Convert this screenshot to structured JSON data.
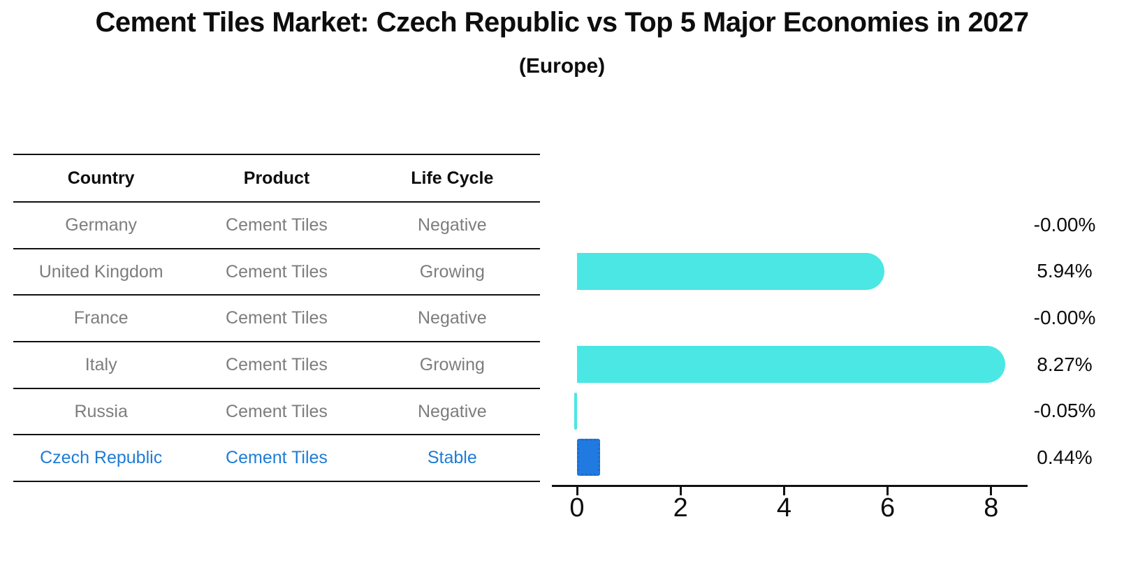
{
  "header": {
    "title": "Cement Tiles Market: Czech Republic vs Top 5 Major Economies in 2027",
    "subtitle": "(Europe)"
  },
  "table": {
    "headers": [
      "Country",
      "Product",
      "Life Cycle"
    ],
    "rows": [
      {
        "country": "Germany",
        "product": "Cement Tiles",
        "life_cycle": "Negative",
        "highlight": false
      },
      {
        "country": "United Kingdom",
        "product": "Cement Tiles",
        "life_cycle": "Growing",
        "highlight": false
      },
      {
        "country": "France",
        "product": "Cement Tiles",
        "life_cycle": "Negative",
        "highlight": false
      },
      {
        "country": "Italy",
        "product": "Cement Tiles",
        "life_cycle": "Growing",
        "highlight": false
      },
      {
        "country": "Russia",
        "product": "Cement Tiles",
        "life_cycle": "Negative",
        "highlight": false
      },
      {
        "country": "Czech Republic",
        "product": "Cement Tiles",
        "life_cycle": "Stable",
        "highlight": true
      }
    ]
  },
  "colors": {
    "bar_default": "#4AE7E4",
    "bar_highlight": "#217ADF",
    "bar_highlight_border": "#1C6BD0",
    "text_highlight": "#1E7CD6",
    "text_muted": "#7D7D7D",
    "axis": "#111111"
  },
  "chart_data": {
    "type": "bar",
    "orientation": "horizontal",
    "title": "Cement Tiles Market: Czech Republic vs Top 5 Major Economies in 2027 (Europe)",
    "categories": [
      "Germany",
      "United Kingdom",
      "France",
      "Italy",
      "Russia",
      "Czech Republic"
    ],
    "values": [
      -0.0,
      5.94,
      -0.0,
      8.27,
      -0.05,
      0.44
    ],
    "value_labels": [
      "-0.00%",
      "5.94%",
      "-0.00%",
      "8.27%",
      "-0.05%",
      "0.44%"
    ],
    "x_ticks": [
      0,
      2,
      4,
      6,
      8
    ],
    "xlim": [
      -0.5,
      8.7
    ],
    "xlabel": "",
    "ylabel": "",
    "grid": false,
    "legend": "none",
    "bar_colors": [
      "#4AE7E4",
      "#4AE7E4",
      "#4AE7E4",
      "#4AE7E4",
      "#4AE7E4",
      "#217ADF"
    ],
    "highlight_index": 5
  }
}
